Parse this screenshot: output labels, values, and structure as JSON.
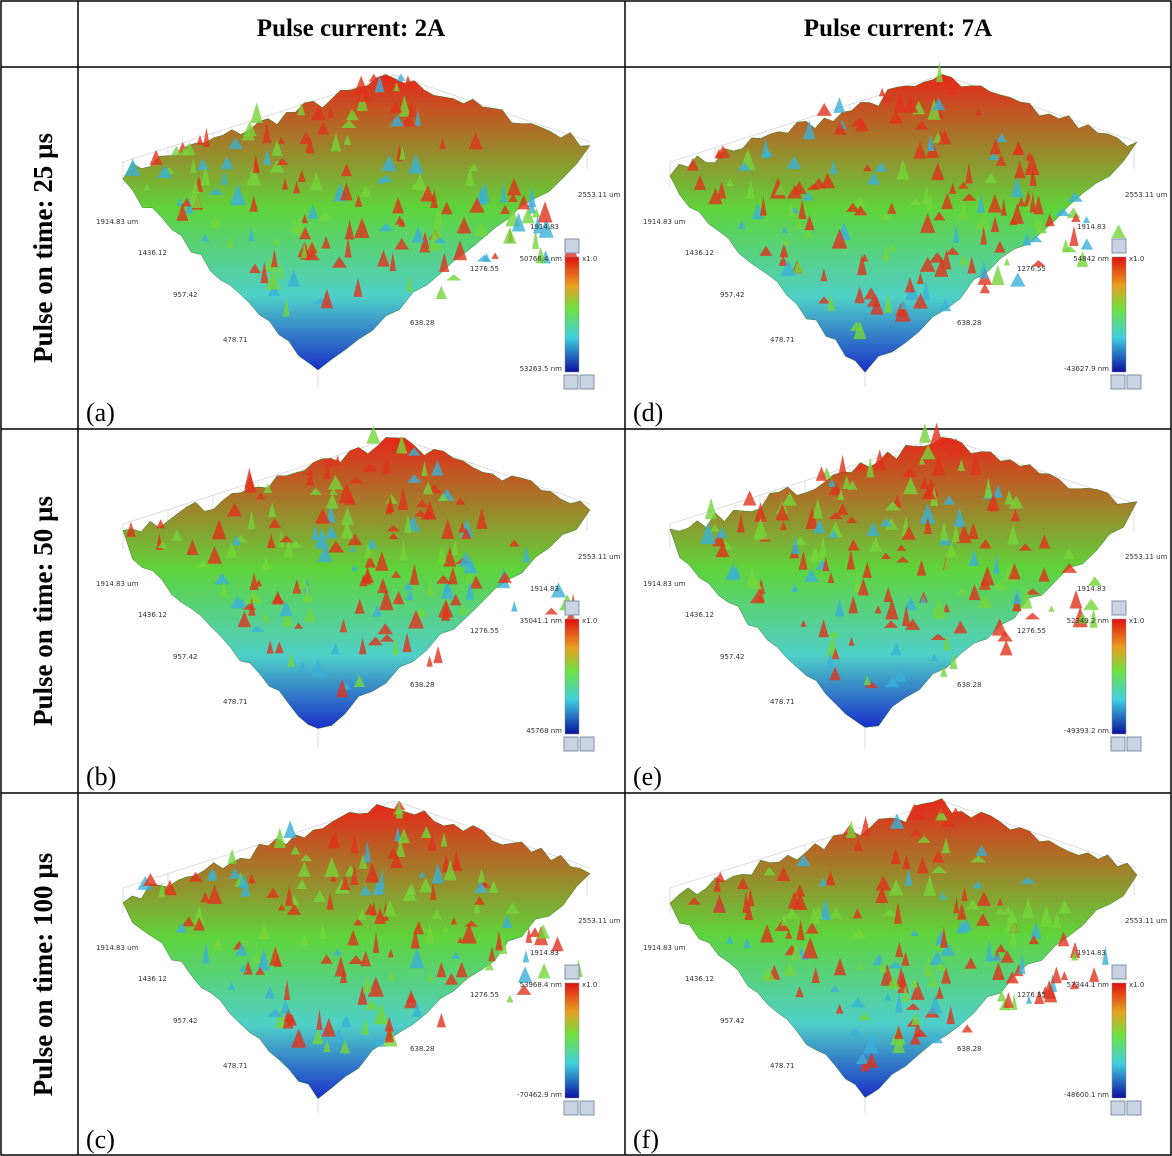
{
  "header": {
    "columns": [
      "Pulse current: 2A",
      "Pulse current: 7A"
    ]
  },
  "rows": [
    {
      "label": "Pulse on time: 25 µs",
      "panels": [
        {
          "label": "(a)",
          "colorbar_max": "50766.4 nm",
          "colorbar_min": "53263.5 nm",
          "scale": "x1.0",
          "left_axis": [
            "1914.83 um",
            "1436.12",
            "957.42",
            "478.71"
          ],
          "right_axis": [
            "2553.11 um",
            "1914.83",
            "1276.55",
            "638.28"
          ]
        },
        {
          "label": "(d)",
          "colorbar_max": "54842 nm",
          "colorbar_min": "-43627.9 nm",
          "scale": "x1.0",
          "left_axis": [
            "1914.83 um",
            "1436.12",
            "957.42",
            "478.71"
          ],
          "right_axis": [
            "2553.11 um",
            "1914.83",
            "1276.55",
            "638.28"
          ]
        }
      ]
    },
    {
      "label": "Pulse  on time: 50 µs",
      "panels": [
        {
          "label": "(b)",
          "colorbar_max": "35041.1 nm",
          "colorbar_min": "45768 nm",
          "scale": "x1.0",
          "left_axis": [
            "1914.83 um",
            "1436.12",
            "957.42",
            "478.71"
          ],
          "right_axis": [
            "2553.11 um",
            "1914.83",
            "1276.55",
            "638.28"
          ]
        },
        {
          "label": "(e)",
          "colorbar_max": "52349.2 nm",
          "colorbar_min": "-49393.2 nm",
          "scale": "x1.0",
          "left_axis": [
            "1914.83 um",
            "1436.12",
            "957.42",
            "478.71"
          ],
          "right_axis": [
            "2553.11 um",
            "1914.83",
            "1276.55",
            "638.28"
          ]
        }
      ]
    },
    {
      "label": "Pulse on time: 100 µs",
      "panels": [
        {
          "label": "(c)",
          "colorbar_max": "53968.4 nm",
          "colorbar_min": "-70462.9 nm",
          "scale": "x1.0",
          "left_axis": [
            "1914.83 um",
            "1436.12",
            "957.42",
            "478.71"
          ],
          "right_axis": [
            "2553.11 um",
            "1914.83",
            "1276.55",
            "638.28"
          ]
        },
        {
          "label": "(f)",
          "colorbar_max": "57344.1 nm",
          "colorbar_min": "-48600.1 nm",
          "scale": "x1.0",
          "left_axis": [
            "1914.83 um",
            "1436.12",
            "957.42",
            "478.71"
          ],
          "right_axis": [
            "2553.11 um",
            "1914.83",
            "1276.55",
            "638.28"
          ]
        }
      ]
    }
  ]
}
